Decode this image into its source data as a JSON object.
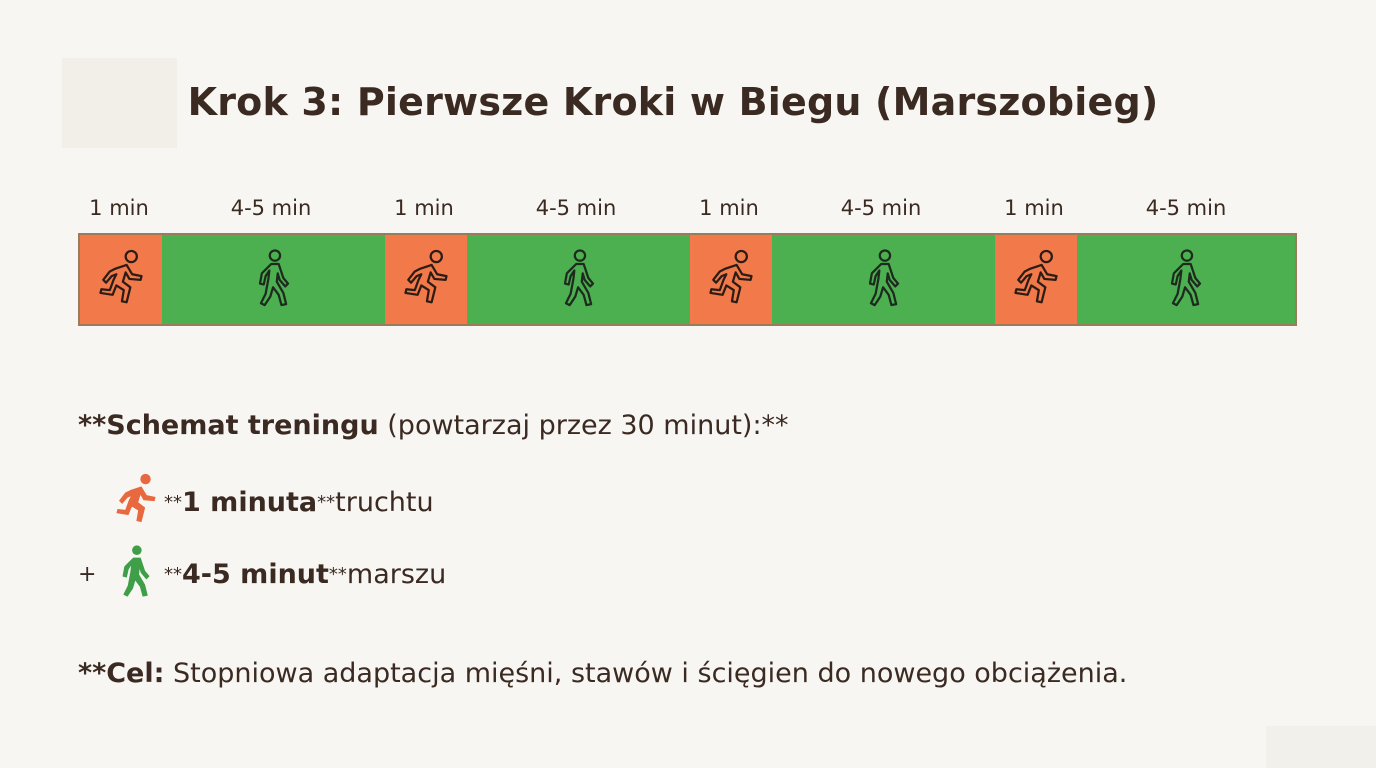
{
  "title": "Krok 3: Pierwsze Kroki w Biegu (Marszobieg)",
  "time_labels": [
    "1 min",
    "4-5 min",
    "1 min",
    "4-5 min",
    "1 min",
    "4-5 min",
    "1 min",
    "4-5 min"
  ],
  "segments": [
    {
      "kind": "run",
      "icon": "runner-icon",
      "color": "#f2794a"
    },
    {
      "kind": "walk",
      "icon": "walker-icon",
      "color": "#4caf50"
    },
    {
      "kind": "run",
      "icon": "runner-icon",
      "color": "#f2794a"
    },
    {
      "kind": "walk",
      "icon": "walker-icon",
      "color": "#4caf50"
    },
    {
      "kind": "run",
      "icon": "runner-icon",
      "color": "#f2794a"
    },
    {
      "kind": "walk",
      "icon": "walker-icon",
      "color": "#4caf50"
    },
    {
      "kind": "run",
      "icon": "runner-icon",
      "color": "#f2794a"
    },
    {
      "kind": "walk",
      "icon": "walker-icon",
      "color": "#4caf50"
    }
  ],
  "schema": {
    "prefix": "**",
    "bold": "Schemat treningu",
    "rest": " (powtarzaj przez 30 minut):**"
  },
  "legend": {
    "run": {
      "plus": "",
      "pre": "**",
      "bold": "1 minuta",
      "post": "**",
      "rest": " truchtu",
      "icon": "runner-icon",
      "color": "#e8693f"
    },
    "walk": {
      "plus": "+",
      "pre": "**",
      "bold": "4-5 minut",
      "post": "**",
      "rest": " marszu",
      "icon": "walker-icon",
      "color": "#3f9e48"
    }
  },
  "goal": {
    "bold": "**Cel:",
    "rest": " Stopniowa adaptacja mięśni, stawów i ścięgien do nowego obciążenia."
  }
}
